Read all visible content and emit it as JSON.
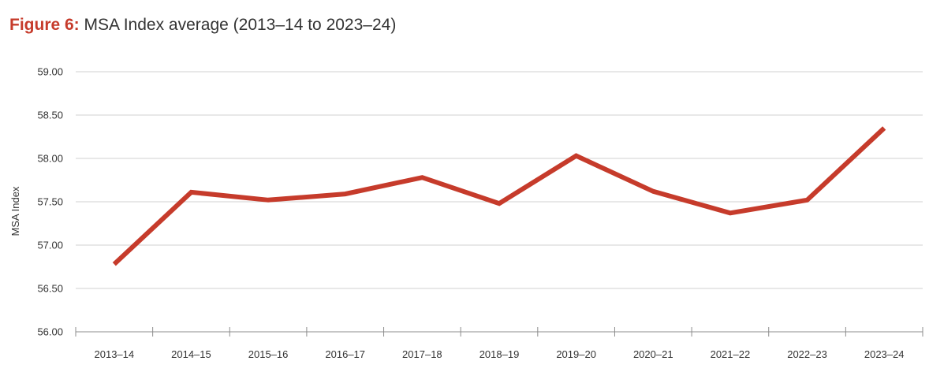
{
  "header": {
    "figure_label": "Figure 6:",
    "title": "MSA Index average (2013–14 to 2023–24)"
  },
  "colors": {
    "accent": "#c63b2b",
    "series": "#c63b2b",
    "grid": "#d0d0d0",
    "axis": "#8c8c8c",
    "text": "#333333"
  },
  "chart_data": {
    "type": "line",
    "title": "MSA Index average (2013–14 to 2023–24)",
    "xlabel": "",
    "ylabel": "MSA Index",
    "categories": [
      "2013–14",
      "2014–15",
      "2015–16",
      "2016–17",
      "2017–18",
      "2018–19",
      "2019–20",
      "2020–21",
      "2021–22",
      "2022–23",
      "2023–24"
    ],
    "series": [
      {
        "values": [
          56.78,
          57.61,
          57.52,
          57.59,
          57.78,
          57.48,
          58.03,
          57.62,
          57.37,
          57.52,
          58.35
        ]
      }
    ],
    "ylim": [
      56.0,
      59.0
    ],
    "yticks": [
      "56.00",
      "56.50",
      "57.00",
      "57.50",
      "58.00",
      "58.50",
      "59.00"
    ],
    "grid": true,
    "legend": "none"
  }
}
